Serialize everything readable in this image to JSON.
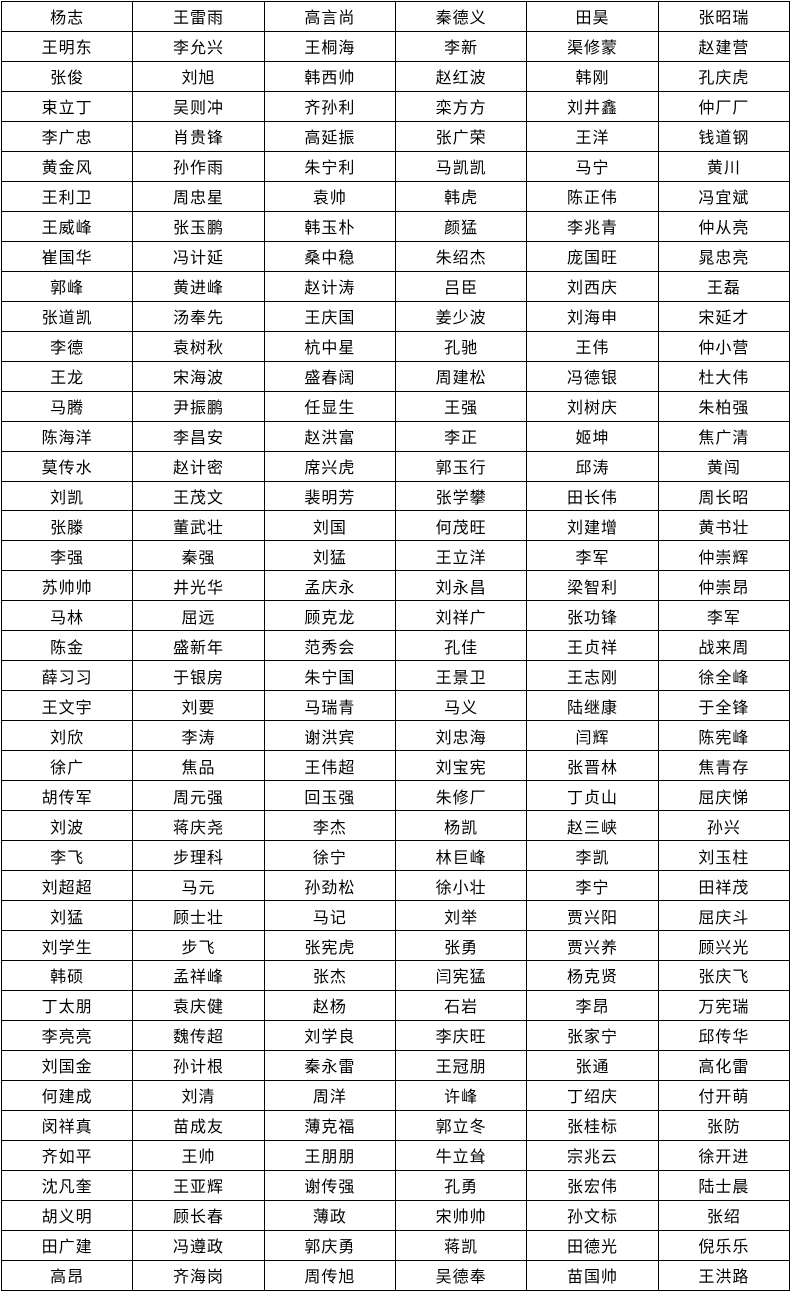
{
  "document": {
    "type": "name-roster-table",
    "background_color": "#ffffff",
    "border_color": "#000000",
    "text_color": "#000000"
  },
  "table": {
    "columns": 6,
    "row_count": 43,
    "rows": [
      [
        "杨志",
        "王雷雨",
        "高言尚",
        "秦德义",
        "田昊",
        "张昭瑞"
      ],
      [
        "王明东",
        "李允兴",
        "王桐海",
        "李新",
        "渠修蒙",
        "赵建营"
      ],
      [
        "张俊",
        "刘旭",
        "韩西帅",
        "赵红波",
        "韩刚",
        "孔庆虎"
      ],
      [
        "束立丁",
        "吴则冲",
        "齐孙利",
        "栾方方",
        "刘井鑫",
        "仲厂厂"
      ],
      [
        "李广忠",
        "肖贵锋",
        "高延振",
        "张广荣",
        "王洋",
        "钱道钢"
      ],
      [
        "黄金风",
        "孙作雨",
        "朱宁利",
        "马凯凯",
        "马宁",
        "黄川"
      ],
      [
        "王利卫",
        "周忠星",
        "袁帅",
        "韩虎",
        "陈正伟",
        "冯宜斌"
      ],
      [
        "王威峰",
        "张玉鹏",
        "韩玉朴",
        "颜猛",
        "李兆青",
        "仲从亮"
      ],
      [
        "崔国华",
        "冯计延",
        "桑中稳",
        "朱绍杰",
        "庞国旺",
        "晁忠亮"
      ],
      [
        "郭峰",
        "黄进峰",
        "赵计涛",
        "吕臣",
        "刘西庆",
        "王磊"
      ],
      [
        "张道凯",
        "汤奉先",
        "王庆国",
        "姜少波",
        "刘海申",
        "宋延才"
      ],
      [
        "李德",
        "袁树秋",
        "杭中星",
        "孔驰",
        "王伟",
        "仲小营"
      ],
      [
        "王龙",
        "宋海波",
        "盛春阔",
        "周建松",
        "冯德银",
        "杜大伟"
      ],
      [
        "马腾",
        "尹振鹏",
        "任显生",
        "王强",
        "刘树庆",
        "朱柏强"
      ],
      [
        "陈海洋",
        "李昌安",
        "赵洪富",
        "李正",
        "姬坤",
        "焦广清"
      ],
      [
        "莫传水",
        "赵计密",
        "席兴虎",
        "郭玉行",
        "邱涛",
        "黄闯"
      ],
      [
        "刘凯",
        "王茂文",
        "裴明芳",
        "张学攀",
        "田长伟",
        "周长昭"
      ],
      [
        "张滕",
        "董武壮",
        "刘国",
        "何茂旺",
        "刘建增",
        "黄书壮"
      ],
      [
        "李强",
        "秦强",
        "刘猛",
        "王立洋",
        "李军",
        "仲崇辉"
      ],
      [
        "苏帅帅",
        "井光华",
        "孟庆永",
        "刘永昌",
        "梁智利",
        "仲崇昂"
      ],
      [
        "马林",
        "屈远",
        "顾克龙",
        "刘祥广",
        "张功锋",
        "李军"
      ],
      [
        "陈金",
        "盛新年",
        "范秀会",
        "孔佳",
        "王贞祥",
        "战来周"
      ],
      [
        "薛习习",
        "于银房",
        "朱宁国",
        "王景卫",
        "王志刚",
        "徐全峰"
      ],
      [
        "王文宇",
        "刘要",
        "马瑞青",
        "马义",
        "陆继康",
        "于全锋"
      ],
      [
        "刘欣",
        "李涛",
        "谢洪宾",
        "刘忠海",
        "闫辉",
        "陈宪峰"
      ],
      [
        "徐广",
        "焦品",
        "王伟超",
        "刘宝宪",
        "张晋林",
        "焦青存"
      ],
      [
        "胡传军",
        "周元强",
        "回玉强",
        "朱修厂",
        "丁贞山",
        "屈庆悌"
      ],
      [
        "刘波",
        "蒋庆尧",
        "李杰",
        "杨凯",
        "赵三峡",
        "孙兴"
      ],
      [
        "李飞",
        "步理科",
        "徐宁",
        "林巨峰",
        "李凯",
        "刘玉柱"
      ],
      [
        "刘超超",
        "马元",
        "孙劲松",
        "徐小壮",
        "李宁",
        "田祥茂"
      ],
      [
        "刘猛",
        "顾士壮",
        "马记",
        "刘举",
        "贾兴阳",
        "屈庆斗"
      ],
      [
        "刘学生",
        "步飞",
        "张宪虎",
        "张勇",
        "贾兴养",
        "顾兴光"
      ],
      [
        "韩硕",
        "孟祥峰",
        "张杰",
        "闫宪猛",
        "杨克贤",
        "张庆飞"
      ],
      [
        "丁太朋",
        "袁庆健",
        "赵杨",
        "石岩",
        "李昂",
        "万宪瑞"
      ],
      [
        "李亮亮",
        "魏传超",
        "刘学良",
        "李庆旺",
        "张家宁",
        "邱传华"
      ],
      [
        "刘国金",
        "孙计根",
        "秦永雷",
        "王冠朋",
        "张通",
        "高化雷"
      ],
      [
        "何建成",
        "刘清",
        "周洋",
        "许峰",
        "丁绍庆",
        "付开萌"
      ],
      [
        "闵祥真",
        "苗成友",
        "薄克福",
        "郭立冬",
        "张桂标",
        "张防"
      ],
      [
        "齐如平",
        "王帅",
        "王朋朋",
        "牛立耸",
        "宗兆云",
        "徐开进"
      ],
      [
        "沈凡奎",
        "王亚辉",
        "谢传强",
        "孔勇",
        "张宏伟",
        "陆士晨"
      ],
      [
        "胡义明",
        "顾长春",
        "薄政",
        "宋帅帅",
        "孙文标",
        "张绍"
      ],
      [
        "田广建",
        "冯遵政",
        "郭庆勇",
        "蒋凯",
        "田德光",
        "倪乐乐"
      ],
      [
        "高昂",
        "齐海岗",
        "周传旭",
        "吴德奉",
        "苗国帅",
        "王洪路"
      ]
    ]
  }
}
